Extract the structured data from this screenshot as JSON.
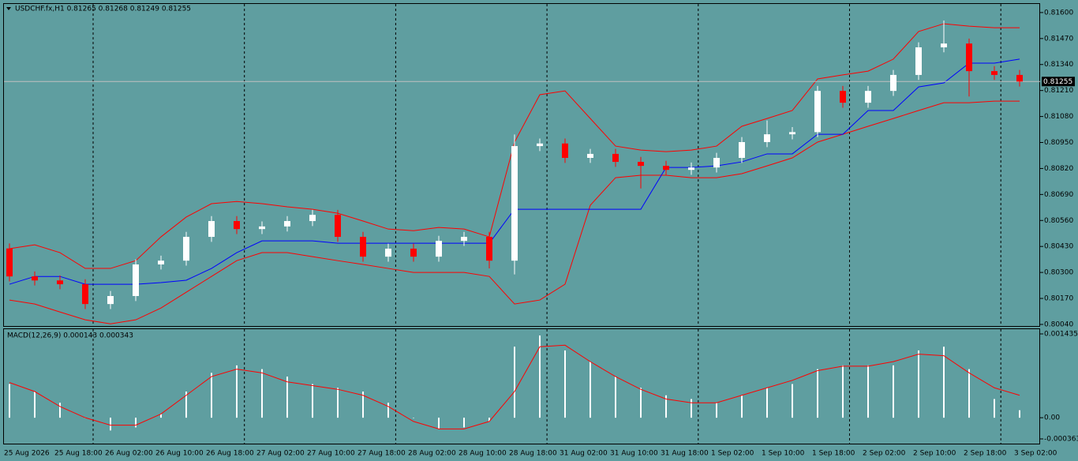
{
  "chart_data": {
    "type": "candlestick",
    "header": "USDCHF.fx,H1  0.81265 0.81268 0.81249 0.81255",
    "macd_label": "MACD(12,26,9) 0.000143 0.000343",
    "current_price": 0.81255,
    "bull_color": "#ffffff",
    "bear_color": "#ff0000",
    "open": [
      0.8042,
      0.8028,
      0.8026,
      0.80241,
      0.80142,
      0.80182,
      0.8034,
      0.80359,
      0.80478,
      0.80557,
      0.80517,
      0.8053,
      0.80557,
      0.80588,
      0.80478,
      0.80379,
      0.80419,
      0.80379,
      0.80458,
      0.80478,
      0.80359,
      0.80932,
      0.80945,
      0.80873,
      0.80893,
      0.80853,
      0.80833,
      0.80813,
      0.80825,
      0.80873,
      0.80952,
      0.80991,
      0.81002,
      0.81208,
      0.81149,
      0.81208,
      0.81288,
      0.81426,
      0.81445,
      0.81307,
      0.81288
    ],
    "high": [
      0.80445,
      0.80305,
      0.80285,
      0.80266,
      0.80207,
      0.80365,
      0.80384,
      0.80503,
      0.80582,
      0.80582,
      0.80555,
      0.80582,
      0.80613,
      0.80613,
      0.80503,
      0.80444,
      0.80444,
      0.80483,
      0.80503,
      0.80503,
      0.8099,
      0.8097,
      0.8097,
      0.80918,
      0.80918,
      0.80878,
      0.80858,
      0.8085,
      0.80898,
      0.80977,
      0.8106,
      0.81027,
      0.81233,
      0.81233,
      0.81233,
      0.81313,
      0.81451,
      0.8156,
      0.8147,
      0.81332,
      0.81313
    ],
    "low": [
      0.80255,
      0.80235,
      0.80216,
      0.80117,
      0.80117,
      0.80157,
      0.80315,
      0.80334,
      0.80453,
      0.80492,
      0.80492,
      0.80505,
      0.80532,
      0.80453,
      0.80354,
      0.80354,
      0.80354,
      0.80354,
      0.80433,
      0.8032,
      0.8029,
      0.80907,
      0.80848,
      0.80848,
      0.80828,
      0.8072,
      0.80788,
      0.80788,
      0.808,
      0.80848,
      0.80927,
      0.80966,
      0.80977,
      0.81124,
      0.81124,
      0.81183,
      0.81263,
      0.81401,
      0.8118,
      0.81263,
      0.8123
    ],
    "close": [
      0.8028,
      0.8026,
      0.80241,
      0.80142,
      0.80182,
      0.8034,
      0.80359,
      0.80478,
      0.80557,
      0.80517,
      0.8053,
      0.80557,
      0.80588,
      0.80478,
      0.80379,
      0.80419,
      0.80379,
      0.80458,
      0.80478,
      0.80359,
      0.80932,
      0.80945,
      0.80873,
      0.80893,
      0.80853,
      0.80833,
      0.80813,
      0.80825,
      0.80873,
      0.80952,
      0.80991,
      0.81002,
      0.81208,
      0.81149,
      0.81208,
      0.81288,
      0.81426,
      0.81445,
      0.81307,
      0.81288,
      0.81255
    ],
    "lines": [
      {
        "color": "#ff0000",
        "values": [
          0.80419,
          0.80438,
          0.80399,
          0.8032,
          0.8032,
          0.80359,
          0.80478,
          0.80577,
          0.80644,
          0.80655,
          0.80644,
          0.80628,
          0.80616,
          0.80596,
          0.80557,
          0.80517,
          0.80509,
          0.80525,
          0.80517,
          0.80478,
          0.80952,
          0.81189,
          0.81208,
          0.8107,
          0.80932,
          0.80912,
          0.80904,
          0.80912,
          0.80932,
          0.81031,
          0.8107,
          0.8111,
          0.81268,
          0.81288,
          0.81307,
          0.81367,
          0.81505,
          0.81544,
          0.81532,
          0.81524,
          0.81524
        ]
      },
      {
        "color": "#ff0000",
        "values": [
          0.80162,
          0.80142,
          0.80102,
          0.80063,
          0.80043,
          0.80063,
          0.80122,
          0.80201,
          0.8028,
          0.80359,
          0.80399,
          0.80399,
          0.80379,
          0.80359,
          0.8034,
          0.8032,
          0.803,
          0.803,
          0.803,
          0.8028,
          0.80142,
          0.80162,
          0.80241,
          0.80636,
          0.80774,
          0.80786,
          0.80786,
          0.80774,
          0.80774,
          0.80794,
          0.80833,
          0.80873,
          0.80952,
          0.80991,
          0.81031,
          0.8107,
          0.8111,
          0.81149,
          0.81149,
          0.81157,
          0.81157
        ]
      },
      {
        "color": "#0000ff",
        "values": [
          0.80241,
          0.8028,
          0.8028,
          0.80241,
          0.80241,
          0.80241,
          0.80249,
          0.80261,
          0.8032,
          0.80399,
          0.80458,
          0.80458,
          0.80458,
          0.80446,
          0.80446,
          0.80446,
          0.80446,
          0.80446,
          0.80446,
          0.80446,
          0.80616,
          0.80616,
          0.80616,
          0.80616,
          0.80616,
          0.80616,
          0.80825,
          0.80825,
          0.80833,
          0.80853,
          0.80893,
          0.80893,
          0.80991,
          0.80991,
          0.8111,
          0.8111,
          0.81228,
          0.81248,
          0.81347,
          0.81347,
          0.81367
        ]
      }
    ],
    "ylim": [
      0.80032,
      0.81643
    ],
    "yticks": [
      {
        "value": 0.8004,
        "label": "0.80040"
      },
      {
        "value": 0.8017,
        "label": "0.80170"
      },
      {
        "value": 0.803,
        "label": "0.80300"
      },
      {
        "value": 0.8043,
        "label": "0.80430"
      },
      {
        "value": 0.8056,
        "label": "0.80560"
      },
      {
        "value": 0.8069,
        "label": "0.80690"
      },
      {
        "value": 0.8082,
        "label": "0.80820"
      },
      {
        "value": 0.8095,
        "label": "0.80950"
      },
      {
        "value": 0.8108,
        "label": "0.81080"
      },
      {
        "value": 0.8121,
        "label": "0.81210"
      },
      {
        "value": 0.8134,
        "label": "0.81340"
      },
      {
        "value": 0.8147,
        "label": "0.81470"
      },
      {
        "value": 0.816,
        "label": "0.81600"
      }
    ],
    "macd_hist": [
      0.000576,
      0.000448,
      0.000256,
      0,
      -0.000218,
      -0.000166,
      6.4e-05,
      0.000448,
      0.000768,
      0.000896,
      0.000832,
      0.000704,
      0.000576,
      0.000512,
      0.000448,
      0.000256,
      0,
      -0.000192,
      -0.000166,
      -6.4e-05,
      0.001216,
      0.001408,
      0.001152,
      0.00096,
      0.000704,
      0.000512,
      0.000384,
      0.00032,
      0.000256,
      0.000384,
      0.000512,
      0.000576,
      0.000832,
      0.000896,
      0.000896,
      0.000896,
      0.001152,
      0.001216,
      0.000832,
      0.00032,
      0.000128
    ],
    "macd_signal": [
      0.000602,
      0.000448,
      0.000192,
      0,
      -0.000128,
      -0.000128,
      6.4e-05,
      0.000384,
      0.000704,
      0.000832,
      0.000768,
      0.000614,
      0.00055,
      0.000486,
      0.000384,
      0.000192,
      -6.4e-05,
      -0.000192,
      -0.000192,
      -6.4e-05,
      0.000448,
      0.001216,
      0.001242,
      0.00096,
      0.000704,
      0.000486,
      0.00032,
      0.000256,
      0.000256,
      0.000384,
      0.000512,
      0.00064,
      0.000806,
      0.000883,
      0.000883,
      0.00096,
      0.001088,
      0.001062,
      0.000768,
      0.000512,
      0.000384
    ],
    "macd_color": "#ff0000",
    "macd_ylim": [
      -0.000363,
      0.001435
    ],
    "macd_yticks": [
      -0.000363,
      {
        "value": 0,
        "label": "0.00"
      },
      0.001435
    ],
    "time_labels": [
      "25 Aug 2026",
      "25 Aug 18:00",
      "26 Aug 02:00",
      "26 Aug 10:00",
      "26 Aug 18:00",
      "27 Aug 02:00",
      "27 Aug 10:00",
      "27 Aug 18:00",
      "28 Aug 02:00",
      "28 Aug 10:00",
      "28 Aug 18:00",
      "31 Aug 02:00",
      "31 Aug 10:00",
      "31 Aug 18:00",
      "1 Sep 02:00",
      "1 Sep 10:00",
      "1 Sep 18:00",
      "2 Sep 02:00",
      "2 Sep 10:00",
      "2 Sep 18:00",
      "3 Sep 02:00"
    ]
  }
}
